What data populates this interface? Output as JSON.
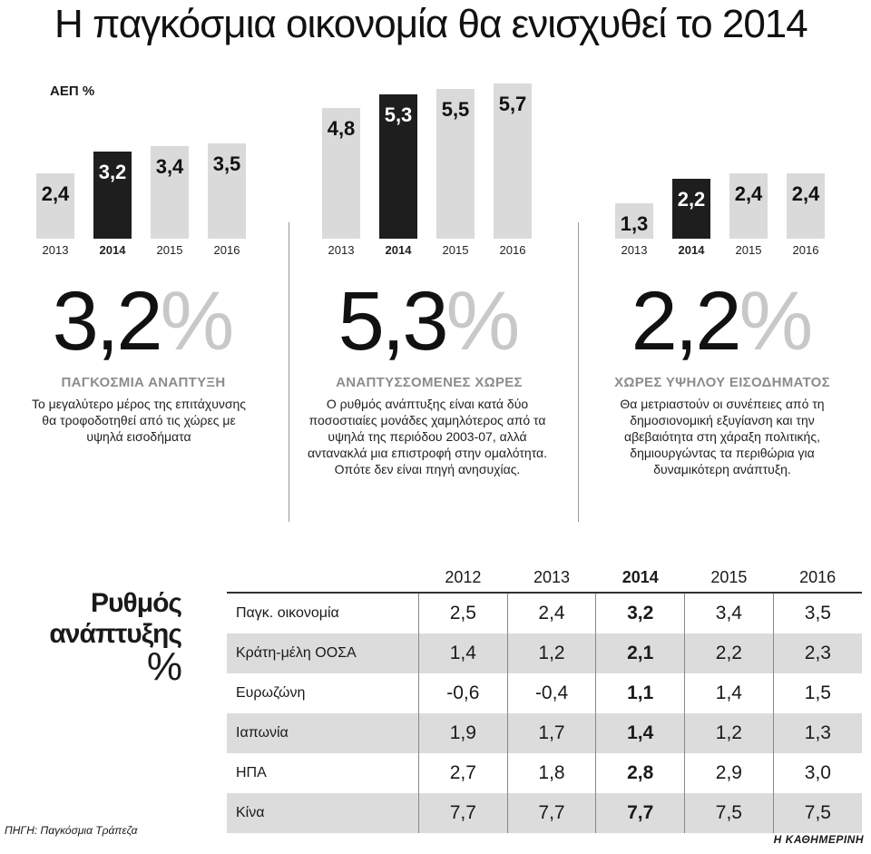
{
  "title": "Η παγκόσμια οικονομία θα ενισχυθεί το 2014",
  "unit_label": "ΑΕΠ %",
  "colors": {
    "bar": "#dadada",
    "highlight": "#1e1e1e",
    "label_dark": "#111111",
    "label_light": "#ffffff"
  },
  "chart_data": [
    {
      "type": "bar",
      "title": "ΠΑΓΚΟΣΜΙΑ ΑΝΑΠΤΥΞΗ",
      "categories": [
        "2013",
        "2014",
        "2015",
        "2016"
      ],
      "values": [
        2.4,
        3.2,
        3.4,
        3.5
      ],
      "value_labels": [
        "2,4",
        "3,2",
        "3,4",
        "3,5"
      ],
      "highlight_index": 1,
      "ylabel": "ΑΕΠ %",
      "ylim": [
        0,
        6
      ],
      "big_value": "3,2",
      "big_suffix": "%",
      "description": "Το μεγαλύτερο μέρος της επιτάχυνσης θα τροφοδοτηθεί από τις χώρες με υψηλά εισοδήματα"
    },
    {
      "type": "bar",
      "title": "ΑΝΑΠΤΥΣΣΟΜΕΝΕΣ ΧΩΡΕΣ",
      "categories": [
        "2013",
        "2014",
        "2015",
        "2016"
      ],
      "values": [
        4.8,
        5.3,
        5.5,
        5.7
      ],
      "value_labels": [
        "4,8",
        "5,3",
        "5,5",
        "5,7"
      ],
      "highlight_index": 1,
      "ylabel": "ΑΕΠ %",
      "ylim": [
        0,
        6
      ],
      "big_value": "5,3",
      "big_suffix": "%",
      "description": "Ο ρυθμός ανάπτυξης είναι κατά δύο ποσοστιαίες μονάδες χαμηλότερος από τα υψηλά της περιόδου 2003-07, αλλά αντανακλά μια επιστροφή στην ομαλότητα. Οπότε δεν είναι πηγή ανησυχίας."
    },
    {
      "type": "bar",
      "title": "ΧΩΡΕΣ ΥΨΗΛΟΥ ΕΙΣΟΔΗΜΑΤΟΣ",
      "categories": [
        "2013",
        "2014",
        "2015",
        "2016"
      ],
      "values": [
        1.3,
        2.2,
        2.4,
        2.4
      ],
      "value_labels": [
        "1,3",
        "2,2",
        "2,4",
        "2,4"
      ],
      "highlight_index": 1,
      "ylabel": "ΑΕΠ %",
      "ylim": [
        0,
        6
      ],
      "big_value": "2,2",
      "big_suffix": "%",
      "description": "Θα μετριαστούν οι συνέπειες από τη δημοσιονομική εξυγίανση και την αβεβαιότητα στη χάραξη πολιτικής, δημιουργώντας τα περιθώρια για δυναμικότερη ανάπτυξη."
    },
    {
      "type": "table",
      "title_line1": "Ρυθμός",
      "title_line2": "ανάπτυξης",
      "title_suffix": "%",
      "columns": [
        "2012",
        "2013",
        "2014",
        "2015",
        "2016"
      ],
      "highlight_column": 2,
      "rows": [
        {
          "name": "Παγκ. οικονομία",
          "values": [
            "2,5",
            "2,4",
            "3,2",
            "3,4",
            "3,5"
          ]
        },
        {
          "name": "Κράτη-μέλη ΟΟΣΑ",
          "values": [
            "1,4",
            "1,2",
            "2,1",
            "2,2",
            "2,3"
          ]
        },
        {
          "name": "Ευρωζώνη",
          "values": [
            "-0,6",
            "-0,4",
            "1,1",
            "1,4",
            "1,5"
          ]
        },
        {
          "name": "Ιαπωνία",
          "values": [
            "1,9",
            "1,7",
            "1,4",
            "1,2",
            "1,3"
          ]
        },
        {
          "name": "ΗΠΑ",
          "values": [
            "2,7",
            "1,8",
            "2,8",
            "2,9",
            "3,0"
          ]
        },
        {
          "name": "Κίνα",
          "values": [
            "7,7",
            "7,7",
            "7,7",
            "7,5",
            "7,5"
          ]
        }
      ]
    }
  ],
  "source": "ΠΗΓΗ: Παγκόσμια Τράπεζα",
  "brand": "Η ΚΑΘΗΜΕΡΙΝΗ"
}
